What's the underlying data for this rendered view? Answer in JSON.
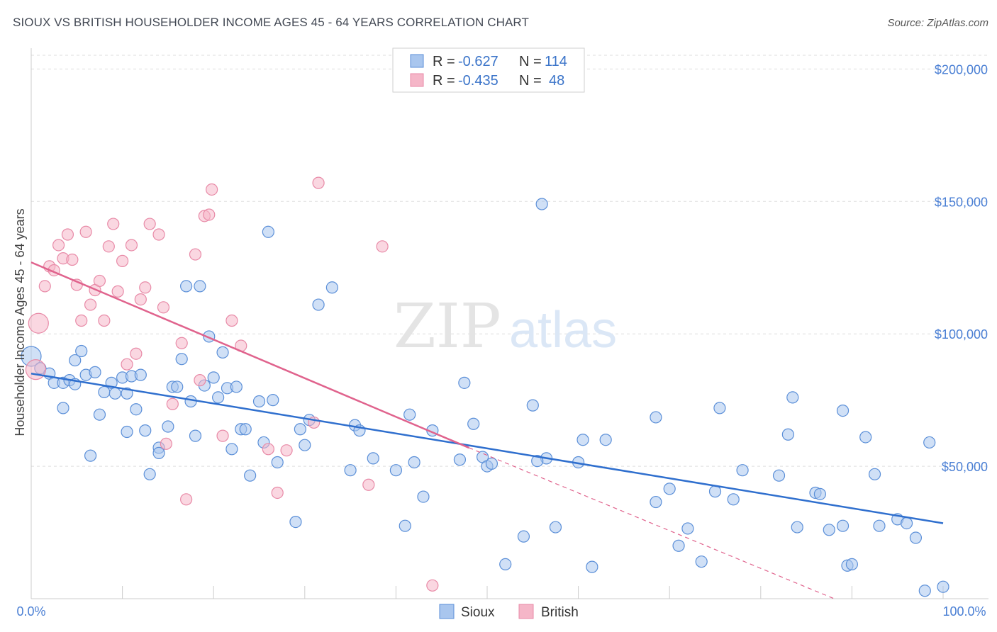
{
  "title": "SIOUX VS BRITISH HOUSEHOLDER INCOME AGES 45 - 64 YEARS CORRELATION CHART",
  "source": "Source: ZipAtlas.com",
  "watermark": {
    "zip": "ZIP",
    "atlas": "atlas"
  },
  "colors": {
    "sioux_fill": "#a9c6ee",
    "sioux_stroke": "#5b8fd8",
    "sioux_line": "#2f6fce",
    "british_fill": "#f5b6c8",
    "british_stroke": "#e88aa7",
    "british_line": "#e0638d",
    "tick_text": "#4a7fd4",
    "grid": "#dddddd"
  },
  "legend": {
    "rows": [
      {
        "r_label": "R =",
        "r_value": "-0.627",
        "n_label": "N =",
        "n_value": "114"
      },
      {
        "r_label": "R =",
        "r_value": "-0.435",
        "n_label": "N =",
        "n_value": "48"
      }
    ]
  },
  "bottom_legend": [
    "Sioux",
    "British"
  ],
  "chart_data": {
    "type": "scatter",
    "xlabel": "",
    "ylabel": "Householder Income Ages 45 - 64 years",
    "x_tick_labels": [
      "0.0%",
      "100.0%"
    ],
    "xlim": [
      0,
      100
    ],
    "ylim": [
      0,
      210000
    ],
    "y_ticks": [
      50000,
      100000,
      150000,
      200000
    ],
    "y_tick_labels": [
      "$50,000",
      "$100,000",
      "$150,000",
      "$200,000"
    ],
    "grid": true,
    "series": [
      {
        "name": "Sioux",
        "trend": {
          "x0": 0,
          "y0": 85000,
          "x1": 100,
          "y1": 28500
        },
        "points": [
          [
            0.0,
            91500
          ],
          [
            1.0,
            87000
          ],
          [
            2.0,
            85000
          ],
          [
            2.5,
            81500
          ],
          [
            3.5,
            72000
          ],
          [
            3.5,
            81500
          ],
          [
            4.2,
            82500
          ],
          [
            4.8,
            90000
          ],
          [
            4.8,
            81000
          ],
          [
            5.5,
            93500
          ],
          [
            6.0,
            84500
          ],
          [
            6.5,
            54000
          ],
          [
            7.0,
            85500
          ],
          [
            7.5,
            69500
          ],
          [
            8.0,
            78000
          ],
          [
            8.8,
            81500
          ],
          [
            9.2,
            77500
          ],
          [
            10.0,
            83500
          ],
          [
            10.5,
            63000
          ],
          [
            10.5,
            77500
          ],
          [
            11.0,
            84000
          ],
          [
            11.5,
            71500
          ],
          [
            12.0,
            84500
          ],
          [
            12.5,
            63500
          ],
          [
            13.0,
            47000
          ],
          [
            14.0,
            57000
          ],
          [
            14.0,
            55000
          ],
          [
            15.0,
            65000
          ],
          [
            15.5,
            80000
          ],
          [
            16.0,
            80000
          ],
          [
            16.5,
            90500
          ],
          [
            17.0,
            118000
          ],
          [
            17.5,
            74500
          ],
          [
            18.0,
            61500
          ],
          [
            18.5,
            118000
          ],
          [
            19.0,
            80500
          ],
          [
            19.5,
            99000
          ],
          [
            20.0,
            83500
          ],
          [
            20.5,
            76000
          ],
          [
            21.0,
            93000
          ],
          [
            21.5,
            79500
          ],
          [
            22.0,
            56500
          ],
          [
            22.5,
            80000
          ],
          [
            23.0,
            64000
          ],
          [
            23.5,
            64000
          ],
          [
            24.0,
            46500
          ],
          [
            25.0,
            74500
          ],
          [
            25.5,
            59000
          ],
          [
            26.0,
            138500
          ],
          [
            26.5,
            75000
          ],
          [
            27.0,
            51500
          ],
          [
            29.0,
            29000
          ],
          [
            29.5,
            64000
          ],
          [
            30.0,
            58000
          ],
          [
            30.5,
            67500
          ],
          [
            31.5,
            111000
          ],
          [
            33.0,
            117500
          ],
          [
            35.0,
            48500
          ],
          [
            35.5,
            65500
          ],
          [
            36.0,
            63500
          ],
          [
            37.5,
            53000
          ],
          [
            40.0,
            48500
          ],
          [
            41.0,
            27500
          ],
          [
            41.5,
            69500
          ],
          [
            42.0,
            51500
          ],
          [
            43.0,
            38500
          ],
          [
            44.0,
            63500
          ],
          [
            47.0,
            52500
          ],
          [
            47.5,
            81500
          ],
          [
            48.5,
            66000
          ],
          [
            49.5,
            53500
          ],
          [
            50.0,
            50000
          ],
          [
            50.5,
            51000
          ],
          [
            52.0,
            13000
          ],
          [
            54.0,
            23500
          ],
          [
            55.0,
            73000
          ],
          [
            56.0,
            149000
          ],
          [
            56.5,
            53000
          ],
          [
            57.5,
            27000
          ],
          [
            60.0,
            51500
          ],
          [
            60.5,
            60000
          ],
          [
            61.5,
            12000
          ],
          [
            63.0,
            60000
          ],
          [
            68.5,
            68500
          ],
          [
            68.5,
            36500
          ],
          [
            70.0,
            41500
          ],
          [
            71.0,
            20000
          ],
          [
            72.0,
            26500
          ],
          [
            73.5,
            14000
          ],
          [
            75.0,
            40500
          ],
          [
            75.5,
            72000
          ],
          [
            77.0,
            37500
          ],
          [
            78.0,
            48500
          ],
          [
            82.0,
            46500
          ],
          [
            83.0,
            62000
          ],
          [
            83.5,
            76000
          ],
          [
            84.0,
            27000
          ],
          [
            86.0,
            40000
          ],
          [
            86.5,
            39500
          ],
          [
            87.5,
            26000
          ],
          [
            89.0,
            71000
          ],
          [
            89.0,
            27500
          ],
          [
            89.5,
            12500
          ],
          [
            90.0,
            13000
          ],
          [
            91.5,
            61000
          ],
          [
            92.5,
            47000
          ],
          [
            93.0,
            27500
          ],
          [
            95.0,
            30000
          ],
          [
            96.0,
            28500
          ],
          [
            97.0,
            23000
          ],
          [
            98.0,
            3000
          ],
          [
            98.5,
            59000
          ],
          [
            100.0,
            4500
          ],
          [
            55.5,
            52000
          ]
        ]
      },
      {
        "name": "British",
        "trend": {
          "x0": 0,
          "y0": 127000,
          "x1": 48,
          "y1": 57000,
          "dash_x1": 100,
          "dash_y1": -17000
        },
        "points": [
          [
            0.5,
            86500
          ],
          [
            0.8,
            104000
          ],
          [
            1.5,
            118000
          ],
          [
            2.0,
            125500
          ],
          [
            2.5,
            124000
          ],
          [
            3.0,
            133500
          ],
          [
            3.5,
            128500
          ],
          [
            4.0,
            137500
          ],
          [
            4.5,
            128000
          ],
          [
            5.0,
            118500
          ],
          [
            5.5,
            105000
          ],
          [
            6.0,
            138500
          ],
          [
            6.5,
            111000
          ],
          [
            7.0,
            116500
          ],
          [
            7.5,
            120000
          ],
          [
            8.0,
            105000
          ],
          [
            8.5,
            133000
          ],
          [
            9.0,
            141500
          ],
          [
            9.5,
            116000
          ],
          [
            10.0,
            127500
          ],
          [
            10.5,
            88500
          ],
          [
            11.0,
            133500
          ],
          [
            11.5,
            92500
          ],
          [
            12.0,
            113000
          ],
          [
            12.5,
            117500
          ],
          [
            13.0,
            141500
          ],
          [
            14.0,
            137500
          ],
          [
            14.5,
            110000
          ],
          [
            14.8,
            58500
          ],
          [
            15.5,
            73500
          ],
          [
            16.5,
            96500
          ],
          [
            17.0,
            37500
          ],
          [
            18.0,
            130000
          ],
          [
            18.5,
            82500
          ],
          [
            19.0,
            144500
          ],
          [
            19.5,
            145000
          ],
          [
            19.8,
            154500
          ],
          [
            21.0,
            61500
          ],
          [
            22.0,
            105000
          ],
          [
            23.0,
            95500
          ],
          [
            26.0,
            56500
          ],
          [
            27.0,
            40000
          ],
          [
            28.0,
            56000
          ],
          [
            31.0,
            66500
          ],
          [
            31.5,
            157000
          ],
          [
            38.5,
            133000
          ],
          [
            44.0,
            5000
          ],
          [
            37.0,
            43000
          ]
        ]
      }
    ]
  }
}
